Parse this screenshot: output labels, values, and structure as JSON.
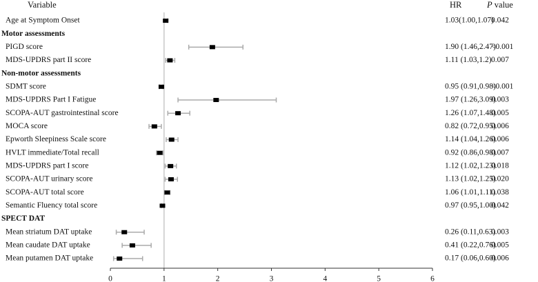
{
  "chart_data": {
    "type": "forest",
    "column_headers": {
      "variable": "Variable",
      "hr": "HR",
      "p_italic": "P",
      "p_rest": "value"
    },
    "categories": [
      "Age at Symptom Onset",
      "Motor assessments",
      "PIGD score",
      "MDS-UPDRS part II score",
      "Non-motor assessments",
      "SDMT score",
      "MDS-UPDRS Part I Fatigue",
      "SCOPA-AUT gastrointestinal score",
      "MOCA score",
      "Epworth Sleepiness Scale score",
      "HVLT immediate/Total recall",
      "MDS-UPDRS part I score",
      "SCOPA-AUT urinary score",
      "SCOPA-AUT total score",
      "Semantic Fluency total score",
      "SPECT DAT",
      "Mean striatum DAT uptake",
      "Mean caudate DAT uptake",
      "Mean putamen DAT uptake"
    ],
    "values": [
      1.03,
      null,
      1.9,
      1.11,
      null,
      0.95,
      1.97,
      1.26,
      0.82,
      1.14,
      0.92,
      1.12,
      1.13,
      1.06,
      0.97,
      null,
      0.26,
      0.41,
      0.17
    ],
    "lower": [
      1.0,
      null,
      1.46,
      1.03,
      null,
      0.91,
      1.26,
      1.07,
      0.72,
      1.04,
      0.86,
      1.02,
      1.02,
      1.01,
      0.95,
      null,
      0.11,
      0.22,
      0.06
    ],
    "upper": [
      1.07,
      null,
      2.47,
      1.2,
      null,
      0.98,
      3.09,
      1.48,
      0.95,
      1.26,
      0.98,
      1.23,
      1.25,
      1.11,
      1.0,
      null,
      0.63,
      0.76,
      0.6
    ],
    "value_labels": [
      "1.03(1.00,1.07)",
      null,
      "1.90 (1.46,2.47)",
      "1.11 (1.03,1.2)",
      null,
      "0.95 (0.91,0.98)",
      "1.97 (1.26,3.09)",
      "1.26 (1.07,1.48)",
      "0.82 (0.72,0.95)",
      "1.14 (1.04,1.26)",
      "0.92 (0.86,0.98)",
      "1.12 (1.02,1.23)",
      "1.13 (1.02,1.25)",
      "1.06 (1.01,1.11)",
      "0.97 (0.95,1.00)",
      null,
      "0.26 (0.11,0.63)",
      "0.41 (0.22,0.76)",
      "0.17 (0.06,0.60)"
    ],
    "p_values": [
      "0.042",
      null,
      "<0.001",
      "0.007",
      null,
      "<0.001",
      "0.003",
      "0.005",
      "0.006",
      "0.006",
      "0.007",
      "0.018",
      "0.020",
      "0.038",
      "0.042",
      null,
      "0.003",
      "0.005",
      "0.006"
    ],
    "xlim": [
      0,
      6
    ],
    "xticks": [
      0,
      1,
      2,
      3,
      4,
      5,
      6
    ],
    "ref_line": 1,
    "point_color": "#000000",
    "ci_color": "#aaaaaa",
    "ref_color": "#c8c8c8"
  }
}
